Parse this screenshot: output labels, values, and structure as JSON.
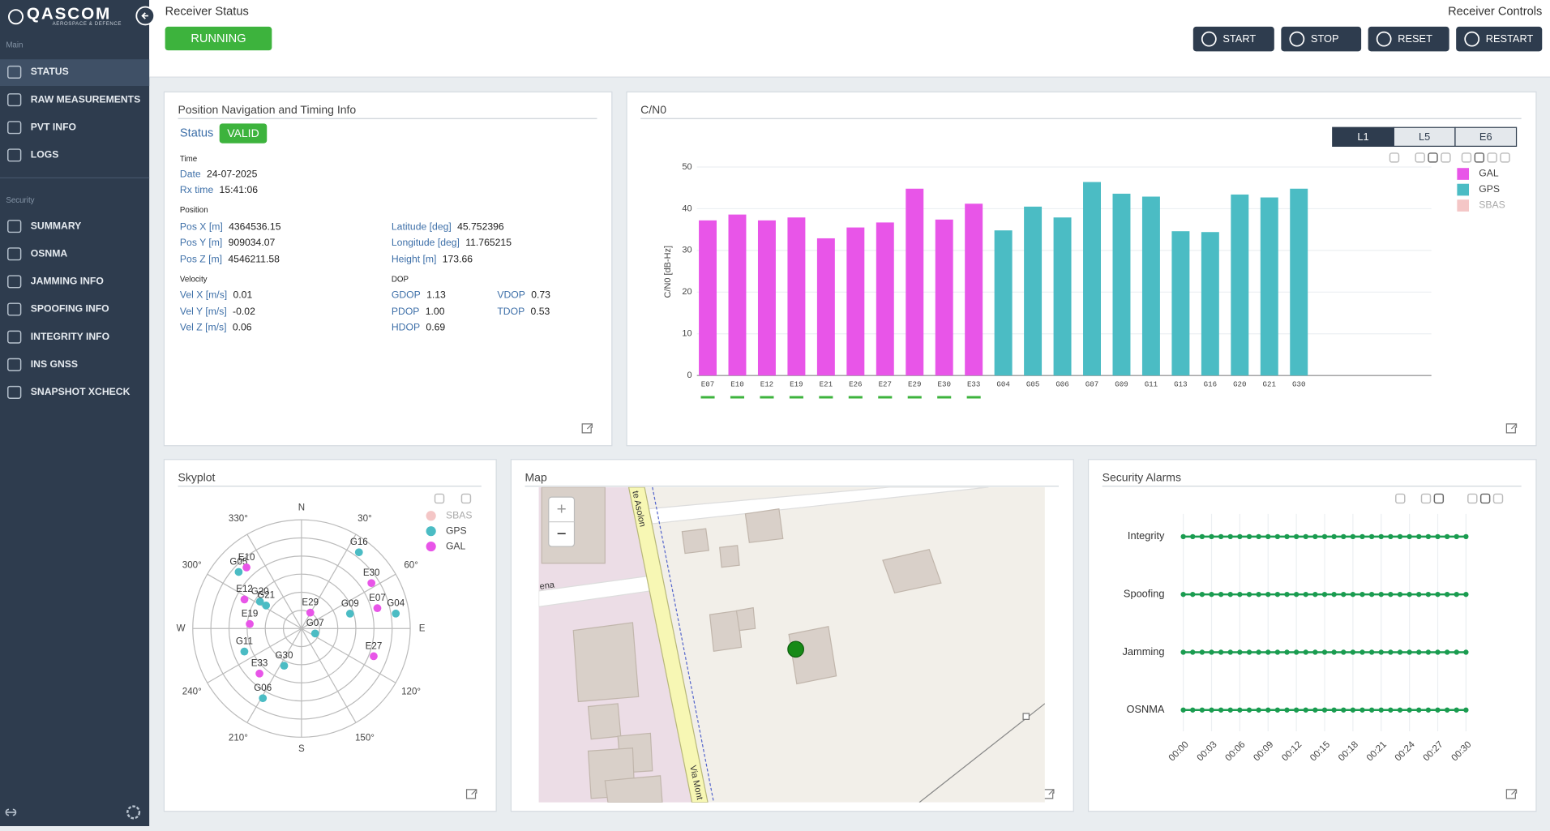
{
  "sidebar": {
    "brand": "QASCOM",
    "tagline": "AEROSPACE & DEFENCE",
    "sections": [
      {
        "title": "Main",
        "items": [
          "STATUS",
          "RAW MEASUREMENTS",
          "PVT INFO",
          "LOGS"
        ]
      },
      {
        "title": "Security",
        "items": [
          "SUMMARY",
          "OSNMA",
          "JAMMING INFO",
          "SPOOFING INFO",
          "INTEGRITY INFO",
          "INS GNSS",
          "SNAPSHOT XCHECK"
        ]
      }
    ]
  },
  "header": {
    "status_title": "Receiver Status",
    "status": "RUNNING",
    "controls_title": "Receiver Controls",
    "controls": [
      "START",
      "STOP",
      "RESET",
      "RESTART"
    ]
  },
  "pnt": {
    "title": "Position Navigation and Timing Info",
    "status_label": "Status",
    "status": "VALID",
    "sections": [
      "Time",
      "Position",
      "Velocity",
      "DOP"
    ],
    "fields": [
      {
        "label": "Date",
        "value": "24-07-2025"
      },
      {
        "label": "Rx time",
        "value": "15:41:06"
      },
      {
        "label": "Pos X [m]",
        "value": "4364536.15"
      },
      {
        "label": "Pos Y [m]",
        "value": "909034.07"
      },
      {
        "label": "Pos Z [m]",
        "value": "4546211.58"
      },
      {
        "label": "Latitude [deg]",
        "value": "45.752396"
      },
      {
        "label": "Longitude [deg]",
        "value": "11.765215"
      },
      {
        "label": "Height [m]",
        "value": "173.66"
      },
      {
        "label": "Vel X [m/s]",
        "value": "0.01"
      },
      {
        "label": "Vel Y [m/s]",
        "value": "-0.02"
      },
      {
        "label": "Vel Z [m/s]",
        "value": "0.06"
      },
      {
        "label": "GDOP",
        "value": "1.13"
      },
      {
        "label": "PDOP",
        "value": "1.00"
      },
      {
        "label": "HDOP",
        "value": "0.69"
      },
      {
        "label": "VDOP",
        "value": "0.73"
      },
      {
        "label": "TDOP",
        "value": "0.53"
      }
    ]
  },
  "map": {
    "title": "Map",
    "labels": [
      "te Asolon",
      "ena",
      "Via Mont"
    ],
    "zoom": [
      "+",
      "−"
    ]
  },
  "chart_data": [
    {
      "type": "bar",
      "title": "C/N0",
      "bands": [
        "L1",
        "L5",
        "E6"
      ],
      "ylabel": "C/N0 [dB-Hz]",
      "categories": [
        "E07",
        "E10",
        "E12",
        "E19",
        "E21",
        "E26",
        "E27",
        "E29",
        "E30",
        "E33",
        "G04",
        "G05",
        "G06",
        "G07",
        "G09",
        "G11",
        "G13",
        "G16",
        "G20",
        "G21",
        "G30"
      ],
      "series": [
        {
          "name": "GAL",
          "color": "#e855e8",
          "values": [
            37.2,
            38.6,
            37.2,
            37.9,
            32.9,
            35.5,
            36.7,
            44.8,
            37.4,
            41.2,
            null,
            null,
            null,
            null,
            null,
            null,
            null,
            null,
            null,
            null,
            null
          ]
        },
        {
          "name": "GPS",
          "color": "#4bbcc4",
          "values": [
            null,
            null,
            null,
            null,
            null,
            null,
            null,
            null,
            null,
            null,
            34.8,
            40.5,
            37.9,
            46.4,
            43.6,
            42.9,
            34.6,
            34.4,
            43.4,
            42.7,
            44.8
          ]
        },
        {
          "name": "SBAS",
          "color": "#f4c6c6",
          "values": [
            null,
            null,
            null,
            null,
            null,
            null,
            null,
            null,
            null,
            null,
            null,
            null,
            null,
            null,
            null,
            null,
            null,
            null,
            null,
            null,
            null
          ]
        }
      ],
      "ylim": [
        0,
        50
      ],
      "yticks": [
        0,
        10,
        20,
        30,
        40,
        50
      ],
      "grid": true,
      "legend": "right"
    },
    {
      "type": "polar",
      "title": "Skyplot",
      "angle_ticks": [
        {
          "value": 0,
          "label": "N"
        },
        {
          "value": 30,
          "label": "30°"
        },
        {
          "value": 60,
          "label": "60°"
        },
        {
          "value": 90,
          "label": "E"
        },
        {
          "value": 120,
          "label": "120°"
        },
        {
          "value": 150,
          "label": "150°"
        },
        {
          "value": 180,
          "label": "S"
        },
        {
          "value": 210,
          "label": "210°"
        },
        {
          "value": 240,
          "label": "240°"
        },
        {
          "value": 270,
          "label": "W"
        },
        {
          "value": 300,
          "label": "300°"
        },
        {
          "value": 330,
          "label": "330°"
        }
      ],
      "series": [
        {
          "name": "SBAS",
          "color": "#f4c6c6",
          "points": []
        },
        {
          "name": "GPS",
          "color": "#4bbcc4",
          "points": [
            {
              "name": "G16",
              "azimuth": 37,
              "elevation": 11
            },
            {
              "name": "G05",
              "azimuth": 312,
              "elevation": 20
            },
            {
              "name": "G20",
              "azimuth": 303,
              "elevation": 49
            },
            {
              "name": "G21",
              "azimuth": 303,
              "elevation": 55
            },
            {
              "name": "G09",
              "azimuth": 73,
              "elevation": 48
            },
            {
              "name": "G04",
              "azimuth": 81,
              "elevation": 11
            },
            {
              "name": "G07",
              "azimuth": 110,
              "elevation": 78
            },
            {
              "name": "G11",
              "azimuth": 248,
              "elevation": 39
            },
            {
              "name": "G30",
              "azimuth": 205,
              "elevation": 56
            },
            {
              "name": "G06",
              "azimuth": 209,
              "elevation": 24
            }
          ]
        },
        {
          "name": "GAL",
          "color": "#e855e8",
          "points": [
            {
              "name": "E10",
              "azimuth": 318,
              "elevation": 22
            },
            {
              "name": "E30",
              "azimuth": 57,
              "elevation": 21
            },
            {
              "name": "E12",
              "azimuth": 297,
              "elevation": 37
            },
            {
              "name": "E07",
              "azimuth": 75,
              "elevation": 25
            },
            {
              "name": "E29",
              "azimuth": 29,
              "elevation": 75
            },
            {
              "name": "E19",
              "azimuth": 275,
              "elevation": 47
            },
            {
              "name": "E27",
              "azimuth": 111,
              "elevation": 26
            },
            {
              "name": "E33",
              "azimuth": 223,
              "elevation": 39
            }
          ]
        }
      ]
    },
    {
      "type": "scatter",
      "title": "Security Alarms",
      "color": "#1a9c50",
      "x": [
        0,
        1,
        2,
        3,
        4,
        5,
        6,
        7,
        8,
        9,
        10,
        11,
        12,
        13,
        14,
        15,
        16,
        17,
        18,
        19,
        20,
        21,
        22,
        23,
        24,
        25,
        26,
        27,
        28,
        29,
        30
      ],
      "xlim": [
        0,
        30
      ],
      "xticks": [
        {
          "value": 0,
          "label": "00:00"
        },
        {
          "value": 3,
          "label": "00:03"
        },
        {
          "value": 6,
          "label": "00:06"
        },
        {
          "value": 9,
          "label": "00:09"
        },
        {
          "value": 12,
          "label": "00:12"
        },
        {
          "value": 15,
          "label": "00:15"
        },
        {
          "value": 18,
          "label": "00:18"
        },
        {
          "value": 21,
          "label": "00:21"
        },
        {
          "value": 24,
          "label": "00:24"
        },
        {
          "value": 27,
          "label": "00:27"
        },
        {
          "value": 30,
          "label": "00:30"
        }
      ],
      "series": [
        {
          "name": "Integrity",
          "values": [
            0,
            0,
            0,
            0,
            0,
            0,
            0,
            0,
            0,
            0,
            0,
            0,
            0,
            0,
            0,
            0,
            0,
            0,
            0,
            0,
            0,
            0,
            0,
            0,
            0,
            0,
            0,
            0,
            0,
            0,
            0
          ]
        },
        {
          "name": "Spoofing",
          "values": [
            0,
            0,
            0,
            0,
            0,
            0,
            0,
            0,
            0,
            0,
            0,
            0,
            0,
            0,
            0,
            0,
            0,
            0,
            0,
            0,
            0,
            0,
            0,
            0,
            0,
            0,
            0,
            0,
            0,
            0,
            0
          ]
        },
        {
          "name": "Jamming",
          "values": [
            0,
            0,
            0,
            0,
            0,
            0,
            0,
            0,
            0,
            0,
            0,
            0,
            0,
            0,
            0,
            0,
            0,
            0,
            0,
            0,
            0,
            0,
            0,
            0,
            0,
            0,
            0,
            0,
            0,
            0,
            0
          ]
        },
        {
          "name": "OSNMA",
          "values": [
            0,
            0,
            0,
            0,
            0,
            0,
            0,
            0,
            0,
            0,
            0,
            0,
            0,
            0,
            0,
            0,
            0,
            0,
            0,
            0,
            0,
            0,
            0,
            0,
            0,
            0,
            0,
            0,
            0,
            0,
            0
          ]
        }
      ],
      "grid": true
    }
  ]
}
